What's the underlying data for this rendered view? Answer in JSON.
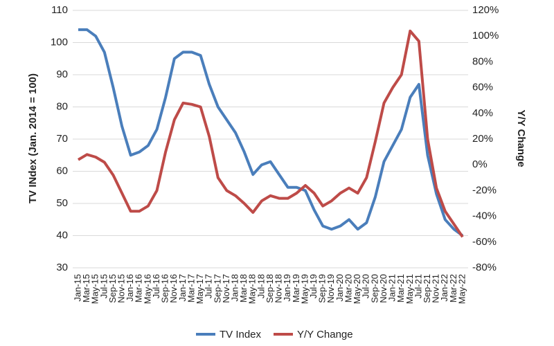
{
  "chart_data": {
    "type": "line",
    "ylabel": "TV INdex (Jan. 2014 = 100)",
    "y2label": "Y/Y Change",
    "categories": [
      "Jan-15",
      "Mar-15",
      "May-15",
      "Jul-15",
      "Sep-15",
      "Nov-15",
      "Jan-16",
      "Mar-16",
      "May-16",
      "Jul-16",
      "Sep-16",
      "Nov-16",
      "Jan-17",
      "Mar-17",
      "May-17",
      "Jul-17",
      "Sep-17",
      "Nov-17",
      "Jan-18",
      "Mar-18",
      "May-18",
      "Jul-18",
      "Sep-18",
      "Nov-18",
      "Jan-19",
      "Mar-19",
      "May-19",
      "Jul-19",
      "Sep-19",
      "Nov-19",
      "Jan-20",
      "Mar-20",
      "May-20",
      "Jul-20",
      "Sep-20",
      "Nov-20",
      "Jan-21",
      "Mar-21",
      "May-21",
      "Jul-21",
      "Sep-21",
      "Nov-21",
      "Jan-22",
      "Mar-22",
      "May-22"
    ],
    "series": [
      {
        "name": "TV Index",
        "color": "#4a7ebb",
        "axis": "y",
        "values": [
          104,
          104,
          102,
          97,
          86,
          74,
          65,
          66,
          68,
          73,
          83,
          95,
          97,
          97,
          96,
          87,
          80,
          76,
          72,
          66,
          59,
          62,
          63,
          59,
          55,
          55,
          54,
          48,
          43,
          42,
          43,
          45,
          42,
          44,
          52,
          63,
          68,
          73,
          83,
          87,
          65,
          53,
          45,
          42,
          40
        ]
      },
      {
        "name": "Y/Y Change",
        "color": "#be4b48",
        "axis": "y2",
        "values": [
          4,
          8,
          6,
          2,
          -8,
          -22,
          -36,
          -36,
          -32,
          -20,
          10,
          35,
          48,
          47,
          45,
          22,
          -10,
          -20,
          -24,
          -30,
          -37,
          -28,
          -24,
          -26,
          -26,
          -22,
          -16,
          -22,
          -32,
          -28,
          -22,
          -18,
          -22,
          -10,
          18,
          48,
          60,
          70,
          104,
          96,
          20,
          -18,
          -36,
          -46,
          -56
        ]
      }
    ],
    "ylim": [
      30,
      110
    ],
    "yticks": [
      30,
      40,
      50,
      60,
      70,
      80,
      90,
      100,
      110
    ],
    "y2lim": [
      -80,
      120
    ],
    "y2ticks": [
      {
        "value": -80,
        "label": "-80%"
      },
      {
        "value": -60,
        "label": "-60%"
      },
      {
        "value": -40,
        "label": "-40%"
      },
      {
        "value": -20,
        "label": "-20%"
      },
      {
        "value": 0,
        "label": "0%"
      },
      {
        "value": 20,
        "label": "20%"
      },
      {
        "value": 40,
        "label": "40%"
      },
      {
        "value": 60,
        "label": "60%"
      },
      {
        "value": 80,
        "label": "80%"
      },
      {
        "value": 100,
        "label": "100%"
      },
      {
        "value": 120,
        "label": "120%"
      }
    ],
    "grid": true,
    "legend": "bottom"
  }
}
